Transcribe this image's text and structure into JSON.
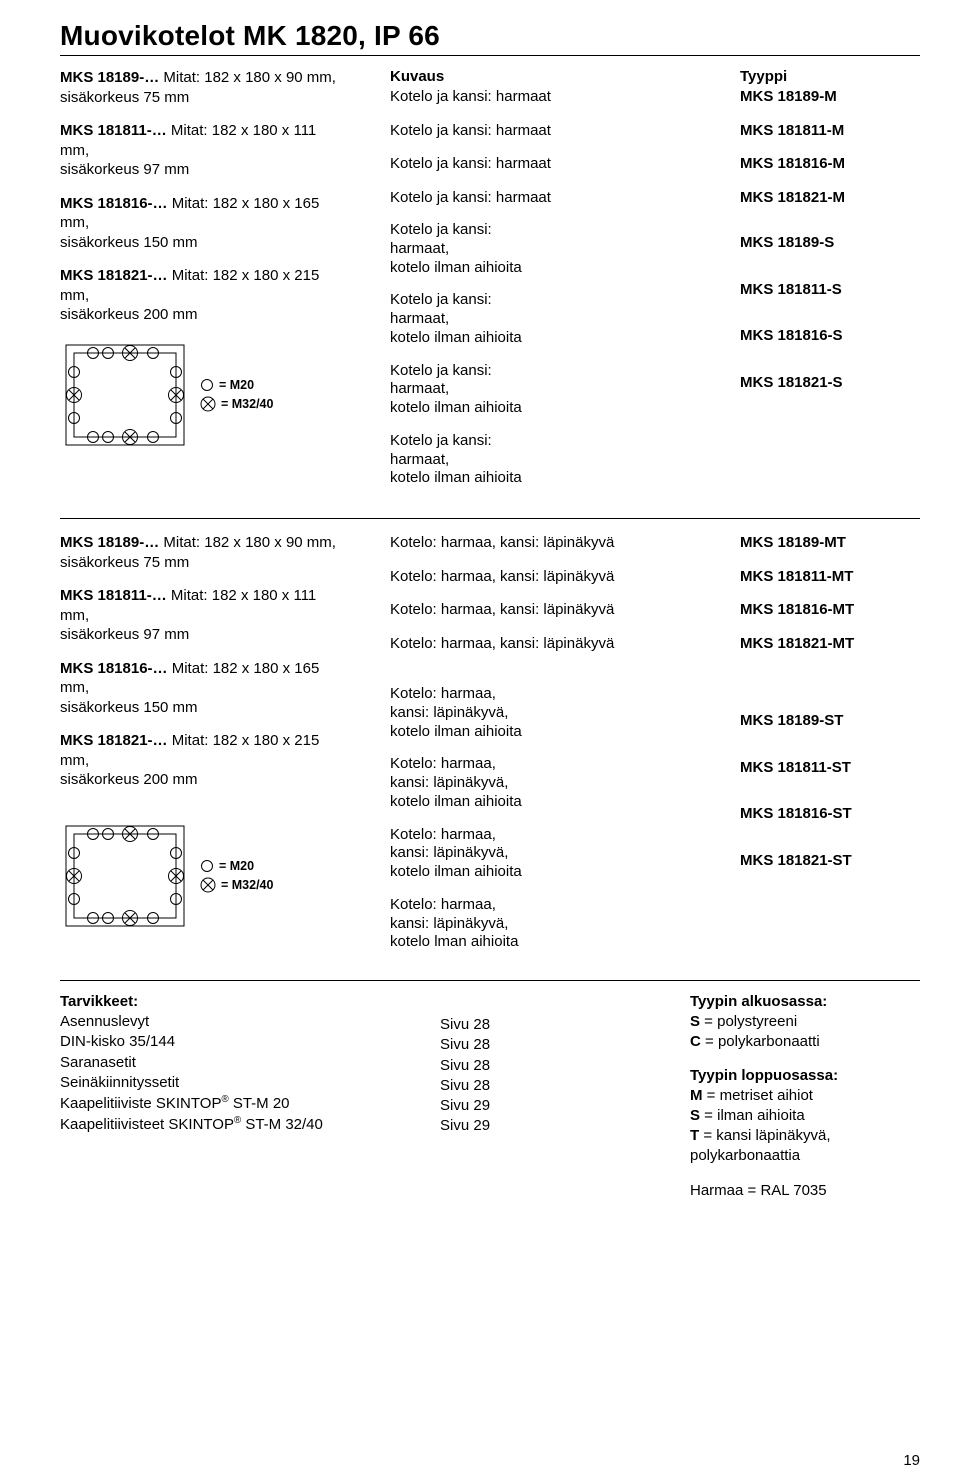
{
  "title": "Muovikotelot MK 1820, IP 66",
  "colheaders": {
    "kuvaus": "Kuvaus",
    "tyyppi": "Tyyppi"
  },
  "sec1_left_models": [
    {
      "code": "MKS 18189-…",
      "dim": "Mitat: 182 x 180 x 90 mm,",
      "sub": "sisäkorkeus 75 mm"
    },
    {
      "code": "MKS 181811-…",
      "dim": "Mitat: 182 x 180 x 111 mm,",
      "sub": "sisäkorkeus 97 mm"
    },
    {
      "code": "MKS 181816-…",
      "dim": "Mitat: 182 x 180 x 165 mm,",
      "sub": "sisäkorkeus 150 mm"
    },
    {
      "code": "MKS 181821-…",
      "dim": "Mitat: 182 x 180 x 215 mm,",
      "sub": "sisäkorkeus 200 mm"
    }
  ],
  "sec1_rows_single": [
    {
      "desc": "Kotelo ja kansi: harmaat",
      "type": "MKS 18189-M"
    },
    {
      "desc": "Kotelo ja kansi: harmaat",
      "type": "MKS 181811-M"
    },
    {
      "desc": "Kotelo ja kansi: harmaat",
      "type": "MKS 181816-M"
    },
    {
      "desc": "Kotelo ja kansi: harmaat",
      "type": "MKS 181821-M"
    }
  ],
  "sec1_rows_multi": [
    {
      "l1": "Kotelo ja kansi:",
      "l2": "harmaat,",
      "l3": "kotelo ilman aihioita",
      "type": "MKS 18189-S"
    },
    {
      "l1": "Kotelo ja kansi:",
      "l2": "harmaat,",
      "l3": "kotelo ilman aihioita",
      "type": "MKS 181811-S"
    },
    {
      "l1": "Kotelo ja kansi:",
      "l2": "harmaat,",
      "l3": "kotelo ilman aihioita",
      "type": "MKS 181816-S"
    },
    {
      "l1": "Kotelo ja kansi:",
      "l2": "harmaat,",
      "l3": "kotelo ilman aihioita",
      "type": "MKS 181821-S"
    }
  ],
  "legend": {
    "m20": "= M20",
    "m32": "= M32/40"
  },
  "sec2_left_models": [
    {
      "code": "MKS 18189-…",
      "dim": "Mitat: 182 x 180 x 90 mm,",
      "sub": "sisäkorkeus 75 mm"
    },
    {
      "code": "MKS 181811-…",
      "dim": "Mitat: 182 x 180 x 111 mm,",
      "sub": "sisäkorkeus 97 mm"
    },
    {
      "code": "MKS 181816-…",
      "dim": "Mitat: 182 x 180 x 165 mm,",
      "sub": "sisäkorkeus 150 mm"
    },
    {
      "code": "MKS 181821-…",
      "dim": "Mitat: 182 x 180 x 215 mm,",
      "sub": "sisäkorkeus 200 mm"
    }
  ],
  "sec2_rows_single": [
    {
      "desc": "Kotelo: harmaa, kansi: läpinäkyvä",
      "type": "MKS 18189-MT"
    },
    {
      "desc": "Kotelo: harmaa, kansi: läpinäkyvä",
      "type": "MKS 181811-MT"
    },
    {
      "desc": "Kotelo: harmaa, kansi: läpinäkyvä",
      "type": "MKS 181816-MT"
    },
    {
      "desc": "Kotelo: harmaa, kansi: läpinäkyvä",
      "type": "MKS 181821-MT"
    }
  ],
  "sec2_rows_multi": [
    {
      "l1": "Kotelo: harmaa,",
      "l2": "kansi: läpinäkyvä,",
      "l3": "kotelo ilman aihioita",
      "type": "MKS 18189-ST"
    },
    {
      "l1": "Kotelo: harmaa,",
      "l2": "kansi: läpinäkyvä,",
      "l3": "kotelo ilman aihioita",
      "type": "MKS 181811-ST"
    },
    {
      "l1": "Kotelo: harmaa,",
      "l2": "kansi: läpinäkyvä,",
      "l3": "kotelo ilman aihioita",
      "type": "MKS 181816-ST"
    },
    {
      "l1": "Kotelo: harmaa,",
      "l2": "kansi: läpinäkyvä,",
      "l3": "kotelo lman aihioita",
      "type": "MKS 181821-ST"
    }
  ],
  "bottom": {
    "left_hdr": "Tarvikkeet:",
    "left_items": [
      "Asennuslevyt",
      "DIN-kisko 35/144",
      "Saranasetit",
      "Seinäkiinnityssetit",
      "Kaapelitiiviste SKINTOP® ST-M 20",
      "Kaapelitiivisteet SKINTOP® ST-M 32/40"
    ],
    "mid_items": [
      "Sivu 28",
      "Sivu 28",
      "Sivu 28",
      "Sivu 28",
      "Sivu 29",
      "Sivu 29"
    ],
    "right_hdr1": "Tyypin alkuosassa:",
    "right1": [
      {
        "b": "S",
        "t": " = polystyreeni"
      },
      {
        "b": "C",
        "t": " = polykarbonaatti"
      }
    ],
    "right_hdr2": "Tyypin loppuosassa:",
    "right2": [
      {
        "b": "M",
        "t": " = metriset aihiot"
      },
      {
        "b": "S",
        "t": " = ilman aihioita"
      },
      {
        "b": "T",
        "t": " = kansi läpinäkyvä,"
      },
      {
        "b": "",
        "t": "polykarbonaattia"
      }
    ],
    "ral": "Harmaa = RAL 7035"
  },
  "diagram": {
    "width": 130,
    "height": 112,
    "outer_stroke": "#000",
    "stroke_w": 1,
    "m20_r": 5.5,
    "m32_r": 7.5
  },
  "pagenum": "19"
}
